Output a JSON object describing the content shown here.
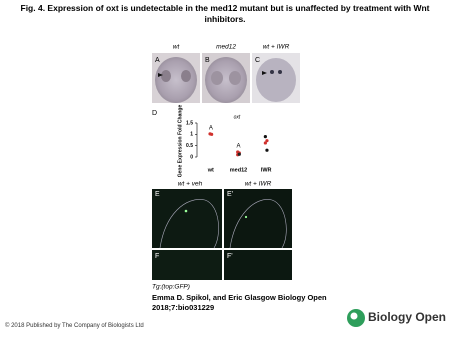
{
  "title": "Fig. 4. Expression of oxt is undetectable in the med12 mutant but is unaffected by treatment with Wnt inhibitors.",
  "top_panels": {
    "headers": [
      "wt",
      "med12",
      "wt + IWR"
    ],
    "labels": [
      "A",
      "B",
      "C"
    ]
  },
  "panel_d": {
    "label": "D",
    "title": "oxt",
    "y_label": "Gene Expression Fold Change",
    "categories": [
      "wt",
      "med12",
      "IWR"
    ],
    "groups": [
      [
        1.02,
        1.0
      ],
      [
        0.1,
        0.18,
        0.22,
        0.12
      ],
      [
        0.9,
        0.72,
        0.62,
        0.3
      ]
    ],
    "colors": [
      [
        "#d0312d",
        "#d0312d"
      ],
      [
        "#d0312d",
        "#d0312d",
        "#d0312d",
        "#222222"
      ],
      [
        "#111111",
        "#d0312d",
        "#d0312d",
        "#111111"
      ]
    ],
    "letters": [
      "A",
      "A"
    ],
    "ylim": [
      0,
      1.5
    ],
    "yticks": [
      0,
      0.5,
      1,
      1.5
    ]
  },
  "bottom_panels": {
    "headers": [
      "wt + veh",
      "wt + IWR"
    ],
    "labels": [
      "E",
      "E'",
      "F",
      "F'"
    ],
    "caption": "Tg:(top:GFP)"
  },
  "citation": "Emma D. Spikol, and Eric Glasgow Biology Open 2018;7:bio031229",
  "footer": "© 2018 Published by The Company of Biologists Ltd",
  "logo": "Biology Open"
}
